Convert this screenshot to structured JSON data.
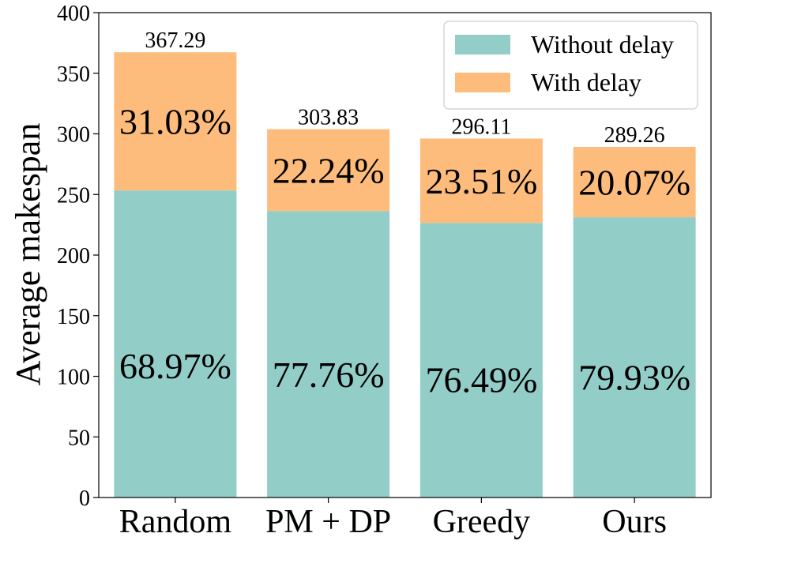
{
  "chart_data": {
    "type": "bar",
    "stacked": true,
    "ylabel": "Average makespan",
    "xlabel": "",
    "ylim": [
      0,
      400
    ],
    "yticks": [
      0,
      50,
      100,
      150,
      200,
      250,
      300,
      350,
      400
    ],
    "categories": [
      "Random",
      "PM + DP",
      "Greedy",
      "Ours"
    ],
    "series": [
      {
        "name": "Without delay",
        "color": "#92cdc8",
        "values": [
          253.31,
          236.26,
          226.49,
          231.2
        ],
        "percent_labels": [
          "68.97%",
          "77.76%",
          "76.49%",
          "79.93%"
        ]
      },
      {
        "name": "With delay",
        "color": "#fdbc7b",
        "values": [
          113.98,
          67.57,
          69.62,
          58.06
        ],
        "percent_labels": [
          "31.03%",
          "22.24%",
          "23.51%",
          "20.07%"
        ]
      }
    ],
    "totals": [
      "367.29",
      "303.83",
      "296.11",
      "289.26"
    ],
    "legend_position": "top-right"
  }
}
